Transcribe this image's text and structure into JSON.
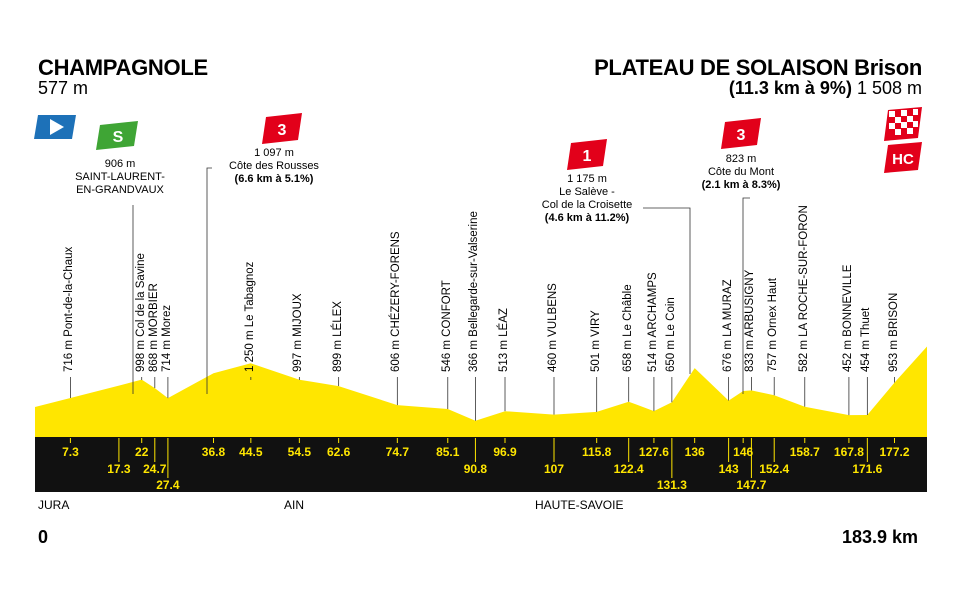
{
  "start": {
    "name": "CHAMPAGNOLE",
    "altitude": "577 m"
  },
  "finish": {
    "name": "PLATEAU DE SOLAISON Brison",
    "climb": "(11.3 km à 9%)",
    "altitude": "1 508 m"
  },
  "sprint": {
    "label": "S",
    "altitude": "906 m",
    "name_line1": "SAINT-LAURENT-",
    "name_line2": "EN-GRANDVAUX"
  },
  "climbs": [
    {
      "category": "3",
      "altitude": "1 097 m",
      "name": "Côte des Rousses",
      "detail": "(6.6 km à 5.1%)"
    },
    {
      "category": "1",
      "altitude": "1 175 m",
      "name_line1": "Le Salève -",
      "name_line2": "Col de la Croisette",
      "detail": "(4.6 km à 11.2%)"
    },
    {
      "category": "3",
      "altitude": "823 m",
      "name": "Côte du Mont",
      "detail": "(2.1 km à 8.3%)"
    }
  ],
  "finish_category": "HC",
  "waypoints": [
    {
      "label": "716 m Pont-de-la-Chaux",
      "km": 7.3
    },
    {
      "label": "998 m Col de la Savine",
      "km": 22
    },
    {
      "label": "868 m MORBIER",
      "km": 24.7
    },
    {
      "label": "714 m Morez",
      "km": 27.4
    },
    {
      "label": "1 250 m Le Tabagnoz",
      "km": 44.5
    },
    {
      "label": "997 m MIJOUX",
      "km": 54.5
    },
    {
      "label": "899 m LÉLEX",
      "km": 62.6
    },
    {
      "label": "606 m CHÉZERY-FORENS",
      "km": 74.7
    },
    {
      "label": "546 m CONFORT",
      "km": 85.1
    },
    {
      "label": "366 m Bellegarde-sur-Valserine",
      "km": 90.8
    },
    {
      "label": "513 m LÉAZ",
      "km": 96.9
    },
    {
      "label": "460 m VULBENS",
      "km": 107
    },
    {
      "label": "501 m VIRY",
      "km": 115.8
    },
    {
      "label": "658 m Le Châble",
      "km": 122.4
    },
    {
      "label": "514 m ARCHAMPS",
      "km": 127.6
    },
    {
      "label": "650 m Le Coin",
      "km": 131.3
    },
    {
      "label": "676 m LA MURAZ",
      "km": 143
    },
    {
      "label": "833 m ARBUSIGNY",
      "km": 147.7
    },
    {
      "label": "757 m Ornex Haut",
      "km": 152.4
    },
    {
      "label": "582 m LA ROCHE-SUR-FORON",
      "km": 158.7
    },
    {
      "label": "452 m BONNEVILLE",
      "km": 167.8
    },
    {
      "label": "454 m Thuet",
      "km": 171.6
    },
    {
      "label": "953 m BRISON",
      "km": 177.2
    }
  ],
  "km_top": [
    "7.3",
    "22",
    "36.8",
    "44.5",
    "54.5",
    "62.6",
    "74.7",
    "85.1",
    "96.9",
    "115.8",
    "127.6",
    "136",
    "146",
    "158.7",
    "167.8",
    "177.2"
  ],
  "km_mid": [
    "17.3",
    "24.7",
    "90.8",
    "107",
    "122.4",
    "143",
    "152.4",
    "171.6"
  ],
  "km_low": [
    "27.4",
    "131.3",
    "147.7"
  ],
  "regions": [
    "JURA",
    "AIN",
    "HAUTE-SAVOIE"
  ],
  "distance": {
    "start": "0",
    "end": "183.9 km"
  },
  "colors": {
    "profile": "#ffe600",
    "profile_dark": "#f2c500",
    "bar": "#111111",
    "climb": "#e2001a",
    "sprint": "#3fa535",
    "start_flag": "#1d71b8"
  },
  "chart_data": {
    "type": "area",
    "x": [
      0,
      7.3,
      17.3,
      22,
      24.7,
      27.4,
      36.8,
      44.5,
      54.5,
      62.6,
      74.7,
      85.1,
      90.8,
      96.9,
      107,
      115.8,
      122.4,
      127.6,
      131.3,
      136,
      143,
      146,
      147.7,
      152.4,
      158.7,
      167.8,
      171.6,
      177.2,
      183.9
    ],
    "y": [
      577,
      716,
      906,
      998,
      868,
      714,
      1097,
      1250,
      997,
      899,
      606,
      546,
      366,
      513,
      460,
      501,
      658,
      514,
      650,
      1175,
      676,
      823,
      833,
      757,
      582,
      452,
      454,
      953,
      1508
    ],
    "xlim": [
      0,
      183.9
    ]
  }
}
